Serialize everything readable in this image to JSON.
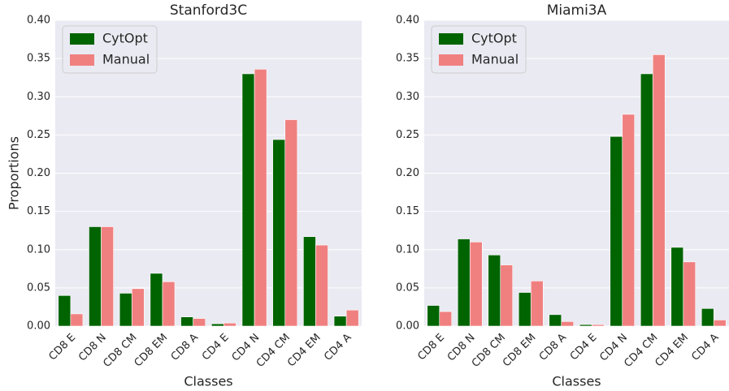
{
  "chart_data": [
    {
      "type": "bar",
      "title": "Stanford3C",
      "xlabel": "Classes",
      "ylabel": "Proportions",
      "categories": [
        "CD8 E",
        "CD8 N",
        "CD8 CM",
        "CD8 EM",
        "CD8 A",
        "CD4 E",
        "CD4 N",
        "CD4 CM",
        "CD4 EM",
        "CD4 A"
      ],
      "series": [
        {
          "name": "CytOpt",
          "color": "#006400",
          "values": [
            0.04,
            0.13,
            0.043,
            0.069,
            0.012,
            0.003,
            0.33,
            0.244,
            0.117,
            0.013
          ]
        },
        {
          "name": "Manual",
          "color": "#f08080",
          "values": [
            0.016,
            0.13,
            0.049,
            0.058,
            0.01,
            0.004,
            0.336,
            0.27,
            0.106,
            0.021
          ]
        }
      ],
      "ylim": [
        0,
        0.4
      ],
      "yticks": [
        {
          "value": 0,
          "label": "0.00"
        },
        {
          "value": 0.05,
          "label": "0.05"
        },
        {
          "value": 0.1,
          "label": "0.10"
        },
        {
          "value": 0.15,
          "label": "0.15"
        },
        {
          "value": 0.2,
          "label": "0.20"
        },
        {
          "value": 0.25,
          "label": "0.25"
        },
        {
          "value": 0.3,
          "label": "0.30"
        },
        {
          "value": 0.35,
          "label": "0.35"
        },
        {
          "value": 0.4,
          "label": "0.40"
        }
      ],
      "grid": true,
      "legend": "upper left"
    },
    {
      "type": "bar",
      "title": "Miami3A",
      "xlabel": "Classes",
      "categories": [
        "CD8 E",
        "CD8 N",
        "CD8 CM",
        "CD8 EM",
        "CD8 A",
        "CD4 E",
        "CD4 N",
        "CD4 CM",
        "CD4 EM",
        "CD4 A"
      ],
      "series": [
        {
          "name": "CytOpt",
          "color": "#006400",
          "values": [
            0.027,
            0.114,
            0.093,
            0.044,
            0.015,
            0.002,
            0.248,
            0.33,
            0.103,
            0.023
          ]
        },
        {
          "name": "Manual",
          "color": "#f08080",
          "values": [
            0.019,
            0.11,
            0.08,
            0.059,
            0.006,
            0.002,
            0.277,
            0.355,
            0.084,
            0.008
          ]
        }
      ],
      "ylim": [
        0,
        0.4
      ],
      "yticks": [
        {
          "value": 0,
          "label": "0.00"
        },
        {
          "value": 0.05,
          "label": "0.05"
        },
        {
          "value": 0.1,
          "label": "0.10"
        },
        {
          "value": 0.15,
          "label": "0.15"
        },
        {
          "value": 0.2,
          "label": "0.20"
        },
        {
          "value": 0.25,
          "label": "0.25"
        },
        {
          "value": 0.3,
          "label": "0.30"
        },
        {
          "value": 0.35,
          "label": "0.35"
        },
        {
          "value": 0.4,
          "label": "0.40"
        }
      ],
      "grid": true,
      "legend": "upper left"
    }
  ]
}
